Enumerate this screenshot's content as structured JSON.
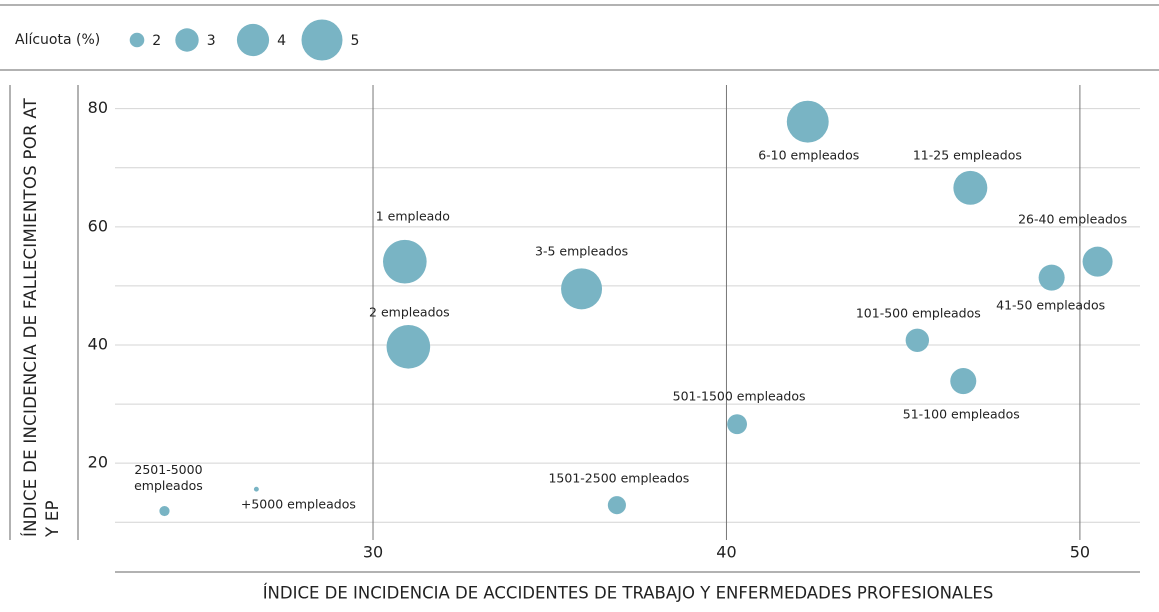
{
  "chart_data": {
    "type": "bubble",
    "size_legend": {
      "title": "Alícuota (%)",
      "values": [
        2,
        3,
        4,
        5
      ]
    },
    "x_label": "ÍNDICE DE INCIDENCIA DE ACCIDENTES DE TRABAJO Y ENFERMEDADES PROFESIONALES",
    "y_label": "ÍNDICE DE INCIDENCIA DE FALLECIMIENTOS POR AT Y EP",
    "color": "#79b4c4",
    "labels": [
      "2501-5000 empleados",
      "+5000 empleados",
      "1501-2500 empleados",
      "501-1500 empleados",
      "1 empleado",
      "2 empleados",
      "3-5 empleados",
      "6-10 empleados",
      "11-25 empleados",
      "26-40 empleados",
      "41-50 empleados",
      "101-500 empleados",
      "51-100 empleados"
    ],
    "x": [
      24.1,
      26.7,
      36.9,
      40.3,
      30.9,
      31.0,
      35.9,
      42.3,
      46.9,
      50.5,
      49.2,
      45.4,
      46.7
    ],
    "values": [
      11.9,
      15.6,
      12.9,
      26.6,
      54.1,
      39.7,
      49.5,
      77.8,
      66.6,
      54.1,
      51.4,
      40.8,
      33.9
    ],
    "sizes": [
      1.5,
      0.9,
      2.4,
      2.6,
      5.3,
      5.3,
      5.0,
      5.1,
      4.2,
      3.75,
      3.3,
      3.0,
      3.3
    ],
    "xlim": [
      22.7,
      51.7
    ],
    "ylim": [
      7,
      84
    ],
    "xticks": [
      30,
      40,
      50
    ],
    "yticks": [
      20,
      40,
      60,
      80
    ],
    "ygrid": [
      10,
      20,
      30,
      40,
      50,
      60,
      70,
      80
    ]
  }
}
